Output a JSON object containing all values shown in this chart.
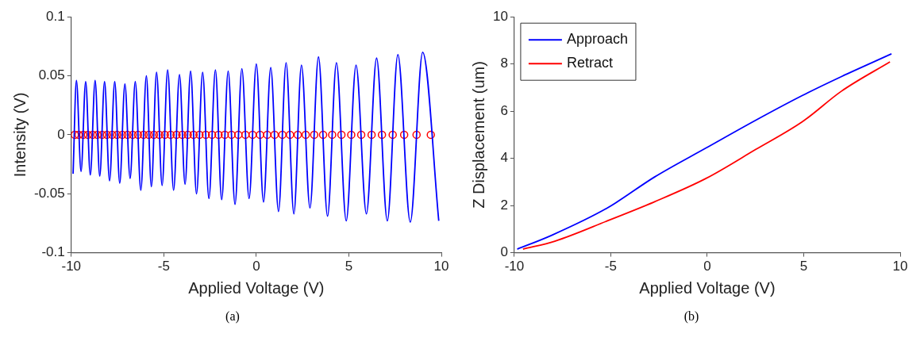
{
  "chart_data": [
    {
      "type": "line",
      "xlabel": "Applied Voltage (V)",
      "ylabel": "Intensity (V)",
      "xlim": [
        -10,
        10
      ],
      "ylim": [
        -0.1,
        0.1
      ],
      "xticks": [
        -10,
        -5,
        0,
        5,
        10
      ],
      "yticks": [
        -0.1,
        -0.05,
        0,
        0.05,
        0.1
      ],
      "grid": false,
      "legend": false,
      "annotations": [
        "(a)"
      ],
      "series": [
        {
          "color": "#0000ff",
          "marker": "none",
          "x": [
            -9.9,
            -9.72,
            -9.47,
            -9.22,
            -8.97,
            -8.71,
            -8.46,
            -8.2,
            -7.93,
            -7.65,
            -7.38,
            -7.1,
            -6.82,
            -6.54,
            -6.24,
            -5.94,
            -5.67,
            -5.39,
            -5.09,
            -4.79,
            -4.47,
            -4.15,
            -3.85,
            -3.55,
            -3.23,
            -2.9,
            -2.56,
            -2.21,
            -1.87,
            -1.52,
            -1.15,
            -0.78,
            -0.39,
            0,
            0.39,
            0.78,
            1.2,
            1.61,
            2.03,
            2.44,
            2.9,
            3.36,
            3.85,
            4.33,
            4.86,
            5.39,
            5.95,
            6.5,
            7.08,
            7.65,
            8.32,
            8.99,
            9.86
          ],
          "values": [
            -0.033,
            0.046,
            -0.031,
            0.045,
            -0.034,
            0.046,
            -0.035,
            0.045,
            -0.039,
            0.045,
            -0.041,
            0.043,
            -0.037,
            0.045,
            -0.047,
            0.05,
            -0.044,
            0.053,
            -0.043,
            0.055,
            -0.047,
            0.051,
            -0.042,
            0.054,
            -0.05,
            0.053,
            -0.054,
            0.055,
            -0.055,
            0.054,
            -0.059,
            0.056,
            -0.054,
            0.06,
            -0.057,
            0.057,
            -0.065,
            0.061,
            -0.067,
            0.059,
            -0.062,
            0.066,
            -0.069,
            0.061,
            -0.073,
            0.059,
            -0.067,
            0.065,
            -0.073,
            0.068,
            -0.074,
            0.07,
            -0.073
          ]
        },
        {
          "type": "scatter",
          "color": "#ff0000",
          "marker": "circle",
          "x": [
            -9.81,
            -9.6,
            -9.35,
            -9.1,
            -8.84,
            -8.59,
            -8.33,
            -8.07,
            -7.79,
            -7.52,
            -7.24,
            -6.96,
            -6.68,
            -6.39,
            -6.09,
            -5.81,
            -5.53,
            -5.24,
            -4.94,
            -4.63,
            -4.31,
            -4,
            -3.7,
            -3.39,
            -3.07,
            -2.73,
            -2.39,
            -2.04,
            -1.7,
            -1.34,
            -0.97,
            -0.59,
            -0.2,
            0.2,
            0.59,
            0.99,
            1.41,
            1.82,
            2.24,
            2.67,
            3.13,
            3.61,
            4.1,
            4.6,
            5.13,
            5.67,
            6.23,
            6.79,
            7.37,
            7.99,
            8.66,
            9.43
          ],
          "values": [
            0,
            0,
            0,
            0,
            0,
            0,
            0,
            0,
            0,
            0,
            0,
            0,
            0,
            0,
            0,
            0,
            0,
            0,
            0,
            0,
            0,
            0,
            0,
            0,
            0,
            0,
            0,
            0,
            0,
            0,
            0,
            0,
            0,
            0,
            0,
            0,
            0,
            0,
            0,
            0,
            0,
            0,
            0,
            0,
            0,
            0,
            0,
            0,
            0,
            0,
            0,
            0
          ]
        }
      ]
    },
    {
      "type": "line",
      "xlabel": "Applied Voltage (V)",
      "ylabel": "Z Displacement (um)",
      "xlim": [
        -10,
        10
      ],
      "ylim": [
        0,
        10
      ],
      "xticks": [
        -10,
        -5,
        0,
        5,
        10
      ],
      "yticks": [
        0,
        2,
        4,
        6,
        8,
        10
      ],
      "grid": false,
      "legend": "top left",
      "annotations": [
        "(b)"
      ],
      "series": [
        {
          "name": "Approach",
          "color": "#0000ff",
          "marker": "none",
          "x": [
            -9.85,
            -8.06,
            -5.15,
            -2.73,
            -0.06,
            2.52,
            4.94,
            6.96,
            9.55
          ],
          "values": [
            0.15,
            0.74,
            1.91,
            3.21,
            4.44,
            5.62,
            6.67,
            7.47,
            8.43
          ]
        },
        {
          "name": "Retract",
          "color": "#ff0000",
          "marker": "none",
          "x": [
            -9.55,
            -7.9,
            -5.15,
            -2.73,
            -0.06,
            2.52,
            4.94,
            6.96,
            9.47
          ],
          "values": [
            0.15,
            0.49,
            1.36,
            2.16,
            3.15,
            4.38,
            5.56,
            6.85,
            8.09
          ]
        }
      ]
    }
  ]
}
